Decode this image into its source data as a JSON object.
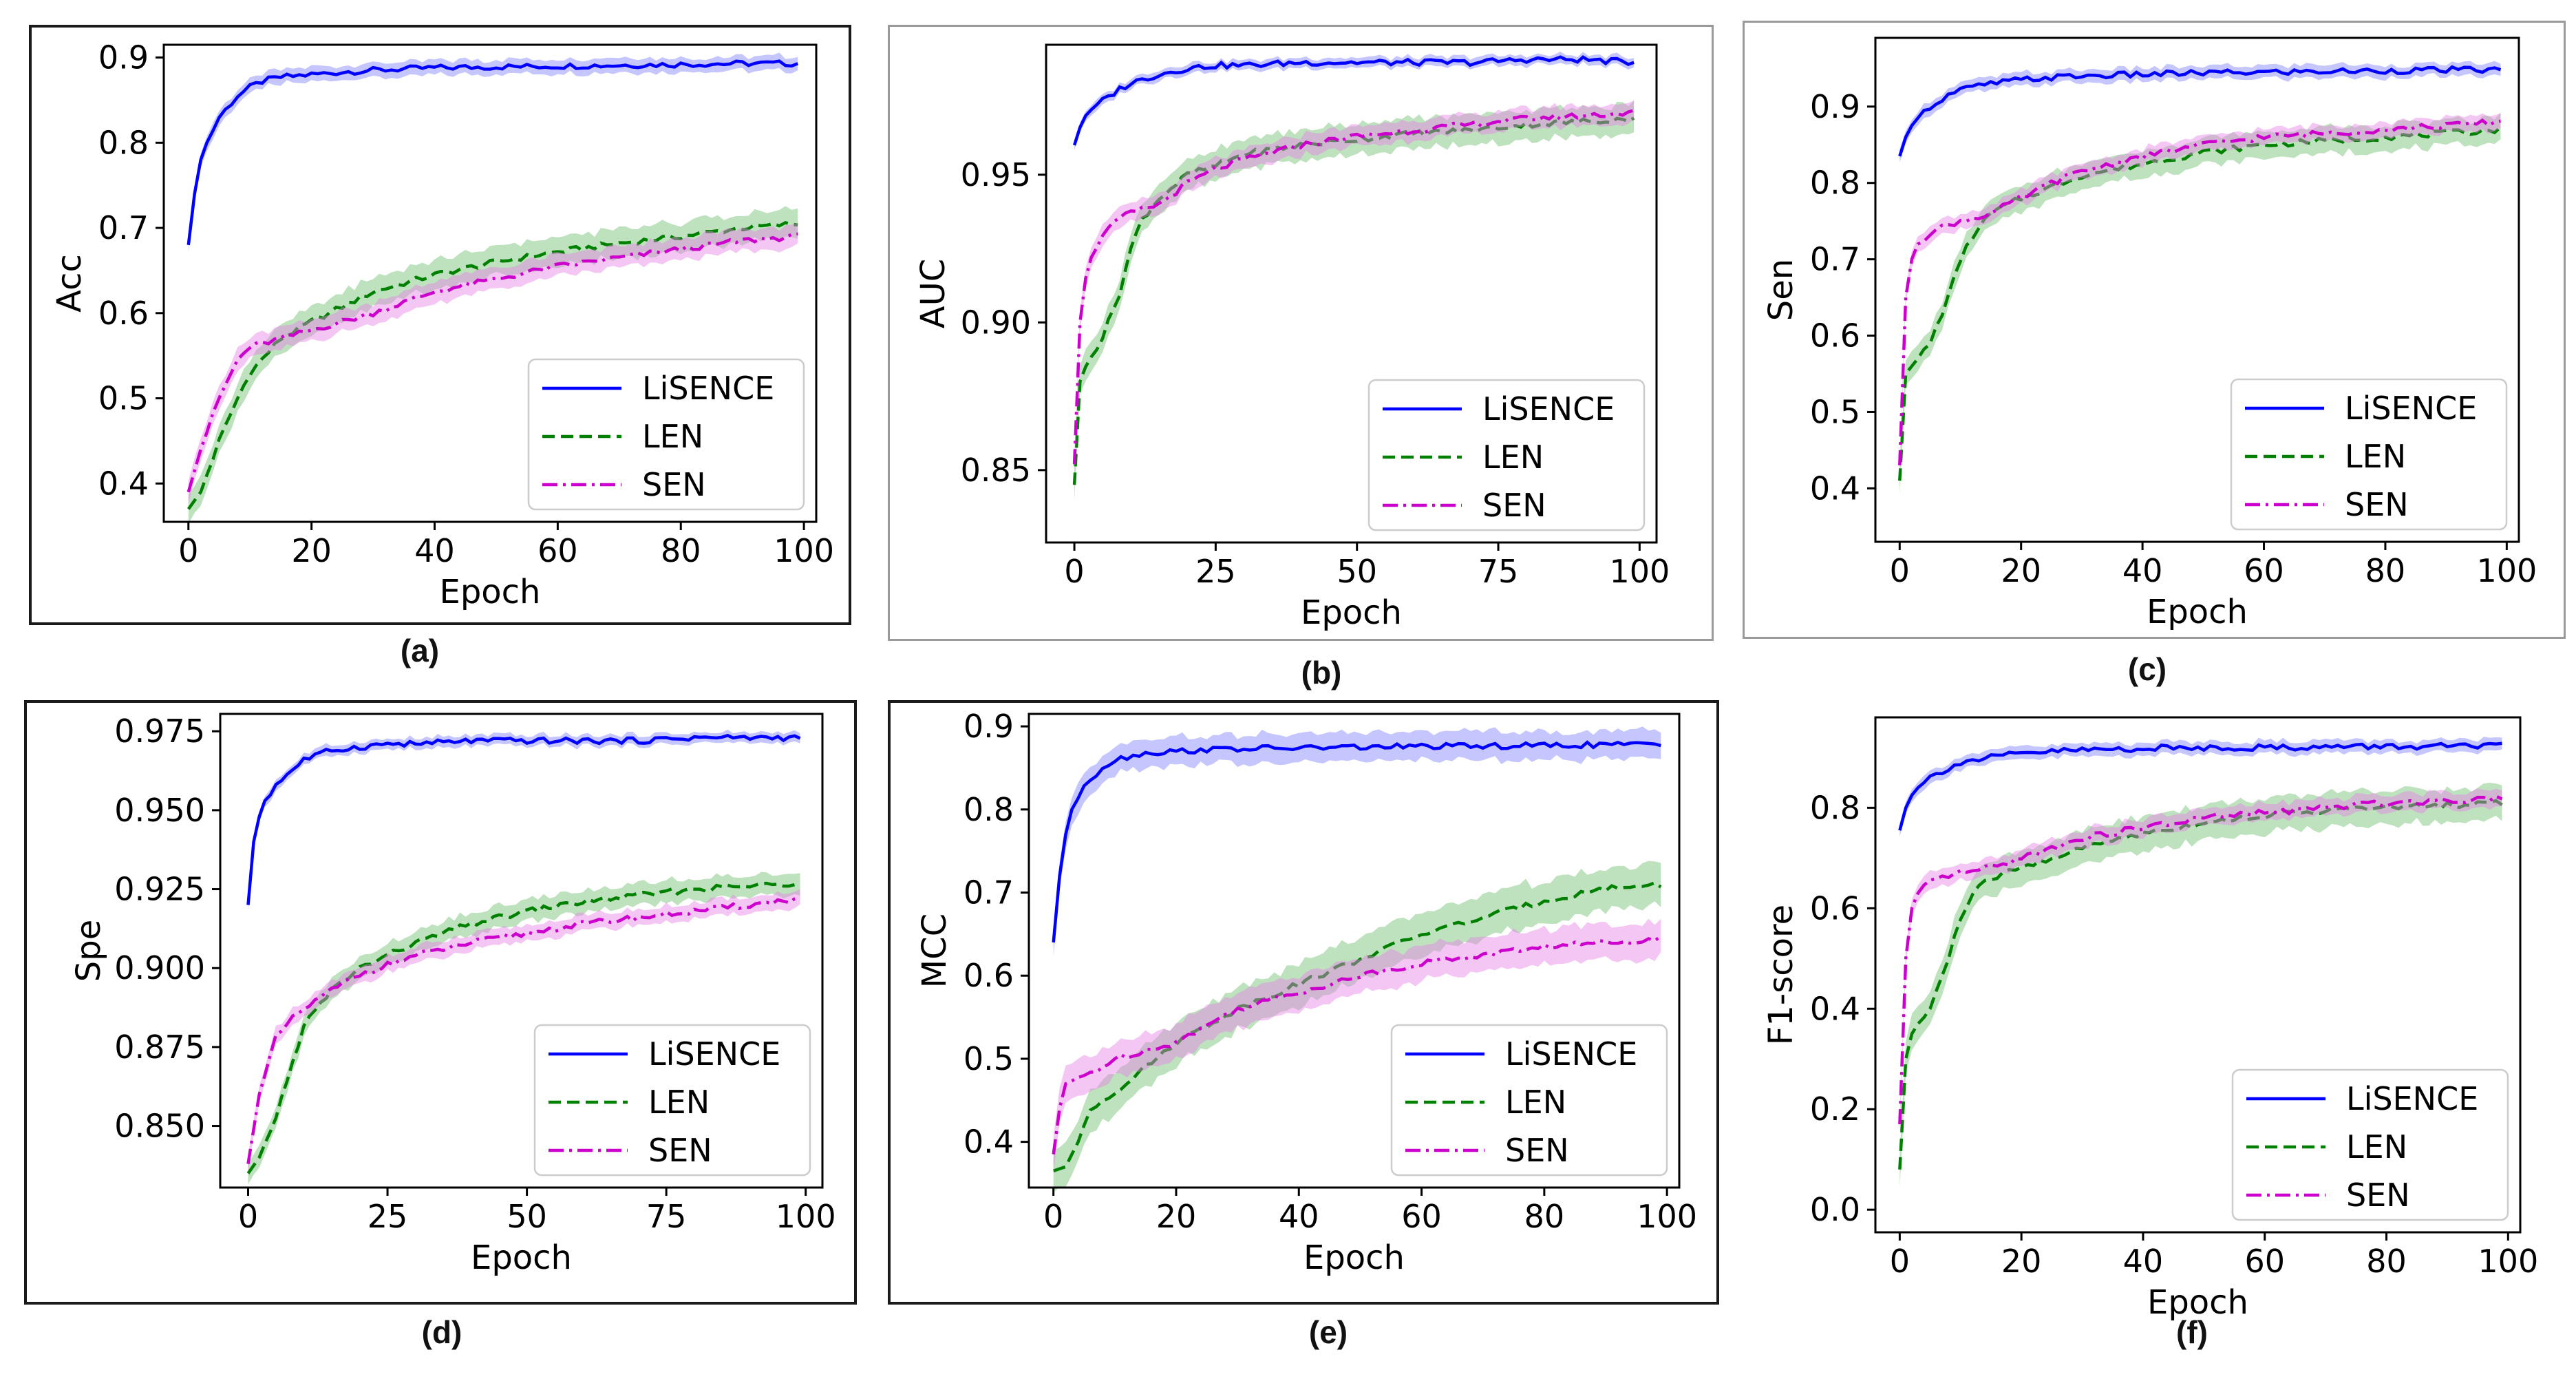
{
  "series_styles": {
    "LiSENCE": {
      "color": "#0000ff",
      "band": "#8080ff",
      "dash": ""
    },
    "LEN": {
      "color": "#008000",
      "band": "#6fbf6f",
      "dash": "18,9"
    },
    "SEN": {
      "color": "#cc00cc",
      "band": "#e680e6",
      "dash": "22,8,4,8"
    }
  },
  "chart_data": [
    {
      "panel": "(a)",
      "type": "line",
      "xlabel": "Epoch",
      "ylabel": "Acc",
      "xlim": [
        -4,
        102
      ],
      "ylim": [
        0.355,
        0.915
      ],
      "xticks": [
        0,
        20,
        40,
        60,
        80,
        100
      ],
      "xtick_labels": [
        "0",
        "20",
        "40",
        "60",
        "80",
        "100"
      ],
      "yticks": [
        0.4,
        0.5,
        0.6,
        0.7,
        0.8,
        0.9
      ],
      "ytick_labels": [
        "0.4",
        "0.5",
        "0.6",
        "0.7",
        "0.8",
        "0.9"
      ],
      "legend": "lower-right",
      "series": [
        {
          "name": "LiSENCE",
          "x": [
            0,
            1,
            2,
            3,
            5,
            8,
            10,
            12,
            15,
            20,
            25,
            30,
            40,
            50,
            60,
            70,
            80,
            90,
            99
          ],
          "values": [
            0.68,
            0.74,
            0.78,
            0.8,
            0.83,
            0.855,
            0.865,
            0.872,
            0.877,
            0.88,
            0.883,
            0.885,
            0.888,
            0.889,
            0.89,
            0.891,
            0.892,
            0.893,
            0.893
          ],
          "band": 0.01
        },
        {
          "name": "LEN",
          "x": [
            0,
            2,
            5,
            8,
            10,
            15,
            20,
            30,
            40,
            50,
            60,
            70,
            80,
            90,
            99
          ],
          "values": [
            0.37,
            0.39,
            0.45,
            0.5,
            0.53,
            0.57,
            0.59,
            0.625,
            0.645,
            0.66,
            0.672,
            0.682,
            0.69,
            0.7,
            0.705
          ],
          "band": 0.02
        },
        {
          "name": "SEN",
          "x": [
            0,
            2,
            5,
            8,
            10,
            15,
            20,
            30,
            40,
            50,
            60,
            70,
            80,
            90,
            99
          ],
          "values": [
            0.39,
            0.44,
            0.5,
            0.545,
            0.56,
            0.57,
            0.58,
            0.6,
            0.625,
            0.64,
            0.655,
            0.665,
            0.675,
            0.685,
            0.69
          ],
          "band": 0.015
        }
      ]
    },
    {
      "panel": "(b)",
      "type": "line",
      "xlabel": "Epoch",
      "ylabel": "AUC",
      "xlim": [
        -5,
        103
      ],
      "ylim": [
        0.8255,
        0.994
      ],
      "xticks": [
        0,
        25,
        50,
        75,
        100
      ],
      "xtick_labels": [
        "0",
        "25",
        "50",
        "75",
        "100"
      ],
      "yticks": [
        0.85,
        0.9,
        0.95
      ],
      "ytick_labels": [
        "0.85",
        "0.90",
        "0.95"
      ],
      "legend": "lower-right",
      "series": [
        {
          "name": "LiSENCE",
          "x": [
            0,
            1,
            2,
            3,
            5,
            8,
            10,
            15,
            20,
            25,
            30,
            40,
            50,
            60,
            70,
            80,
            90,
            99
          ],
          "values": [
            0.96,
            0.966,
            0.97,
            0.972,
            0.975,
            0.979,
            0.981,
            0.984,
            0.986,
            0.987,
            0.987,
            0.988,
            0.988,
            0.988,
            0.988,
            0.989,
            0.989,
            0.988
          ],
          "band": 0.002
        },
        {
          "name": "LEN",
          "x": [
            0,
            1,
            2,
            5,
            8,
            10,
            12,
            15,
            20,
            25,
            30,
            40,
            50,
            60,
            70,
            80,
            90,
            99
          ],
          "values": [
            0.845,
            0.88,
            0.885,
            0.895,
            0.91,
            0.925,
            0.935,
            0.942,
            0.95,
            0.953,
            0.957,
            0.96,
            0.962,
            0.964,
            0.965,
            0.967,
            0.968,
            0.969
          ],
          "band": 0.006
        },
        {
          "name": "SEN",
          "x": [
            0,
            1,
            2,
            3,
            5,
            8,
            10,
            15,
            20,
            25,
            30,
            40,
            50,
            60,
            70,
            80,
            90,
            99
          ],
          "values": [
            0.852,
            0.9,
            0.915,
            0.922,
            0.93,
            0.935,
            0.937,
            0.94,
            0.947,
            0.952,
            0.955,
            0.96,
            0.963,
            0.965,
            0.967,
            0.969,
            0.97,
            0.971
          ],
          "band": 0.004
        }
      ]
    },
    {
      "panel": "(c)",
      "type": "line",
      "xlabel": "Epoch",
      "ylabel": "Sen",
      "xlim": [
        -4,
        102
      ],
      "ylim": [
        0.33,
        0.99
      ],
      "xticks": [
        0,
        20,
        40,
        60,
        80,
        100
      ],
      "xtick_labels": [
        "0",
        "20",
        "40",
        "60",
        "80",
        "100"
      ],
      "yticks": [
        0.4,
        0.5,
        0.6,
        0.7,
        0.8,
        0.9
      ],
      "ytick_labels": [
        "0.4",
        "0.5",
        "0.6",
        "0.7",
        "0.8",
        "0.9"
      ],
      "legend": "lower-right",
      "series": [
        {
          "name": "LiSENCE",
          "x": [
            0,
            1,
            2,
            3,
            5,
            8,
            10,
            15,
            20,
            25,
            30,
            40,
            50,
            60,
            70,
            80,
            90,
            99
          ],
          "values": [
            0.835,
            0.86,
            0.875,
            0.885,
            0.9,
            0.915,
            0.922,
            0.93,
            0.935,
            0.938,
            0.94,
            0.942,
            0.944,
            0.945,
            0.946,
            0.947,
            0.948,
            0.948
          ],
          "band": 0.01
        },
        {
          "name": "LEN",
          "x": [
            0,
            1,
            2,
            5,
            8,
            10,
            12,
            15,
            20,
            25,
            30,
            40,
            50,
            60,
            70,
            80,
            90,
            99
          ],
          "values": [
            0.41,
            0.55,
            0.56,
            0.59,
            0.65,
            0.7,
            0.73,
            0.76,
            0.78,
            0.795,
            0.81,
            0.825,
            0.84,
            0.85,
            0.855,
            0.86,
            0.865,
            0.87
          ],
          "band": 0.02
        },
        {
          "name": "SEN",
          "x": [
            0,
            1,
            2,
            3,
            5,
            8,
            10,
            15,
            20,
            25,
            30,
            40,
            50,
            60,
            70,
            80,
            90,
            99
          ],
          "values": [
            0.43,
            0.65,
            0.7,
            0.72,
            0.735,
            0.745,
            0.75,
            0.76,
            0.78,
            0.8,
            0.815,
            0.835,
            0.85,
            0.86,
            0.865,
            0.87,
            0.875,
            0.88
          ],
          "band": 0.012
        }
      ]
    },
    {
      "panel": "(d)",
      "type": "line",
      "xlabel": "Epoch",
      "ylabel": "Spe",
      "xlim": [
        -5,
        103
      ],
      "ylim": [
        0.8305,
        0.9805
      ],
      "xticks": [
        0,
        25,
        50,
        75,
        100
      ],
      "xtick_labels": [
        "0",
        "25",
        "50",
        "75",
        "100"
      ],
      "yticks": [
        0.85,
        0.875,
        0.9,
        0.925,
        0.95,
        0.975
      ],
      "ytick_labels": [
        "0.850",
        "0.875",
        "0.900",
        "0.925",
        "0.950",
        "0.975"
      ],
      "legend": "lower-right",
      "series": [
        {
          "name": "LiSENCE",
          "x": [
            0,
            1,
            2,
            3,
            5,
            8,
            10,
            15,
            20,
            25,
            30,
            40,
            50,
            60,
            70,
            80,
            90,
            99
          ],
          "values": [
            0.92,
            0.94,
            0.948,
            0.953,
            0.958,
            0.963,
            0.966,
            0.969,
            0.97,
            0.971,
            0.971,
            0.972,
            0.972,
            0.972,
            0.972,
            0.973,
            0.973,
            0.973
          ],
          "band": 0.002
        },
        {
          "name": "LEN",
          "x": [
            0,
            2,
            5,
            8,
            10,
            15,
            20,
            30,
            40,
            50,
            60,
            70,
            80,
            90,
            99
          ],
          "values": [
            0.835,
            0.84,
            0.853,
            0.87,
            0.882,
            0.893,
            0.9,
            0.908,
            0.914,
            0.918,
            0.921,
            0.923,
            0.925,
            0.926,
            0.927
          ],
          "band": 0.004
        },
        {
          "name": "SEN",
          "x": [
            0,
            2,
            5,
            8,
            10,
            15,
            20,
            30,
            40,
            50,
            60,
            70,
            80,
            90,
            99
          ],
          "values": [
            0.838,
            0.86,
            0.878,
            0.884,
            0.887,
            0.893,
            0.898,
            0.904,
            0.908,
            0.911,
            0.914,
            0.916,
            0.918,
            0.92,
            0.922
          ],
          "band": 0.003
        }
      ]
    },
    {
      "panel": "(e)",
      "type": "line",
      "xlabel": "Epoch",
      "ylabel": "MCC",
      "xlim": [
        -4,
        102
      ],
      "ylim": [
        0.345,
        0.915
      ],
      "xticks": [
        0,
        20,
        40,
        60,
        80,
        100
      ],
      "xtick_labels": [
        "0",
        "20",
        "40",
        "60",
        "80",
        "100"
      ],
      "yticks": [
        0.4,
        0.5,
        0.6,
        0.7,
        0.8,
        0.9
      ],
      "ytick_labels": [
        "0.4",
        "0.5",
        "0.6",
        "0.7",
        "0.8",
        "0.9"
      ],
      "legend": "lower-right",
      "series": [
        {
          "name": "LiSENCE",
          "x": [
            0,
            1,
            2,
            3,
            5,
            8,
            10,
            15,
            20,
            25,
            30,
            40,
            50,
            60,
            70,
            80,
            90,
            99
          ],
          "values": [
            0.64,
            0.72,
            0.77,
            0.8,
            0.83,
            0.85,
            0.86,
            0.868,
            0.87,
            0.872,
            0.873,
            0.874,
            0.875,
            0.876,
            0.876,
            0.877,
            0.878,
            0.878
          ],
          "band": 0.02
        },
        {
          "name": "LEN",
          "x": [
            0,
            2,
            4,
            6,
            8,
            10,
            15,
            20,
            30,
            40,
            50,
            60,
            70,
            80,
            90,
            99
          ],
          "values": [
            0.365,
            0.37,
            0.4,
            0.44,
            0.45,
            0.46,
            0.49,
            0.52,
            0.56,
            0.59,
            0.62,
            0.65,
            0.67,
            0.69,
            0.705,
            0.71
          ],
          "band": 0.03
        },
        {
          "name": "SEN",
          "x": [
            0,
            1,
            2,
            5,
            8,
            10,
            15,
            20,
            30,
            40,
            50,
            60,
            70,
            80,
            90,
            99
          ],
          "values": [
            0.385,
            0.44,
            0.47,
            0.48,
            0.49,
            0.5,
            0.51,
            0.52,
            0.56,
            0.58,
            0.6,
            0.615,
            0.625,
            0.635,
            0.64,
            0.645
          ],
          "band": 0.025
        }
      ]
    },
    {
      "panel": "(f)",
      "type": "line",
      "xlabel": "Epoch",
      "ylabel": "F1-score",
      "xlim": [
        -4,
        102
      ],
      "ylim": [
        -0.045,
        0.98
      ],
      "xticks": [
        0,
        20,
        40,
        60,
        80,
        100
      ],
      "xtick_labels": [
        "0",
        "20",
        "40",
        "60",
        "80",
        "100"
      ],
      "yticks": [
        0.0,
        0.2,
        0.4,
        0.6,
        0.8
      ],
      "ytick_labels": [
        "0.0",
        "0.2",
        "0.4",
        "0.6",
        "0.8"
      ],
      "legend": "lower-right",
      "series": [
        {
          "name": "LiSENCE",
          "x": [
            0,
            1,
            2,
            3,
            5,
            8,
            10,
            15,
            20,
            25,
            30,
            40,
            50,
            60,
            70,
            80,
            90,
            99
          ],
          "values": [
            0.755,
            0.8,
            0.825,
            0.84,
            0.86,
            0.88,
            0.89,
            0.9,
            0.908,
            0.912,
            0.915,
            0.918,
            0.92,
            0.92,
            0.921,
            0.922,
            0.922,
            0.922
          ],
          "band": 0.015
        },
        {
          "name": "LEN",
          "x": [
            0,
            1,
            2,
            3,
            5,
            8,
            10,
            12,
            15,
            20,
            25,
            30,
            40,
            50,
            60,
            70,
            80,
            90,
            99
          ],
          "values": [
            0.08,
            0.3,
            0.35,
            0.37,
            0.4,
            0.5,
            0.58,
            0.63,
            0.66,
            0.68,
            0.7,
            0.72,
            0.75,
            0.77,
            0.785,
            0.795,
            0.8,
            0.805,
            0.81
          ],
          "band": 0.04
        },
        {
          "name": "SEN",
          "x": [
            0,
            1,
            2,
            3,
            5,
            8,
            10,
            15,
            20,
            25,
            30,
            40,
            50,
            60,
            70,
            80,
            90,
            99
          ],
          "values": [
            0.17,
            0.5,
            0.6,
            0.63,
            0.65,
            0.665,
            0.67,
            0.68,
            0.7,
            0.72,
            0.74,
            0.76,
            0.78,
            0.79,
            0.8,
            0.81,
            0.815,
            0.82
          ],
          "band": 0.02
        }
      ]
    }
  ]
}
